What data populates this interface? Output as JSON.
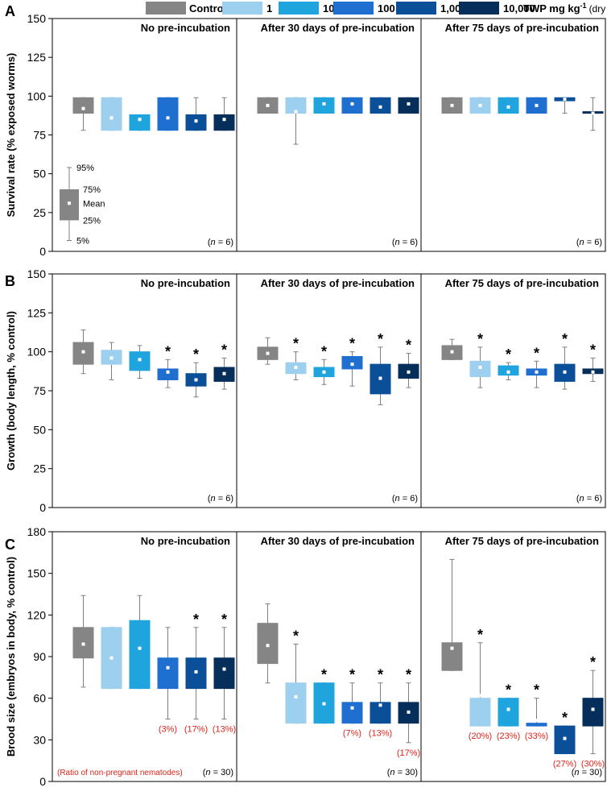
{
  "legend": {
    "items": [
      {
        "label": "Control",
        "color": "#858585"
      },
      {
        "label": "1",
        "color": "#9dd0ee"
      },
      {
        "label": "10",
        "color": "#20a4de"
      },
      {
        "label": "100",
        "color": "#1e6fd0"
      },
      {
        "label": "1,000",
        "color": "#0a4f97"
      },
      {
        "label": "10,000",
        "color": "#062e5b"
      }
    ],
    "unit_bold": "TWP mg kg",
    "unit_sup": "-1",
    "unit_plain": "(dry weight)"
  },
  "box_key": {
    "labels": {
      "p95": "95%",
      "p75": "75%",
      "mean": "Mean",
      "p25": "25%",
      "p5": "5%"
    }
  },
  "chart_data": [
    {
      "type": "box",
      "panel_label": "A",
      "ylabel": "Survival rate (% exposed worms)",
      "ylim": [
        0,
        150
      ],
      "yticks": [
        0,
        25,
        50,
        75,
        100,
        125,
        150
      ],
      "n_label": "6",
      "groups": [
        "No pre-incubation",
        "After 30 days of pre-incubation",
        "After 75 days of pre-incubation"
      ],
      "series": [
        "Control",
        "1",
        "10",
        "100",
        "1,000",
        "10,000"
      ],
      "boxes": [
        [
          {
            "p5": 78,
            "q1": 89,
            "q3": 99,
            "p95": 99,
            "mean": 92
          },
          {
            "p5": 78,
            "q1": 78,
            "q3": 99,
            "p95": 99,
            "mean": 86
          },
          {
            "p5": 78,
            "q1": 78,
            "q3": 88,
            "p95": 88,
            "mean": 85
          },
          {
            "p5": 78,
            "q1": 78,
            "q3": 99,
            "p95": 99,
            "mean": 86
          },
          {
            "p5": 78,
            "q1": 78,
            "q3": 88,
            "p95": 99,
            "mean": 84
          },
          {
            "p5": 78,
            "q1": 78,
            "q3": 88,
            "p95": 99,
            "mean": 85
          }
        ],
        [
          {
            "p5": 89,
            "q1": 89,
            "q3": 99,
            "p95": 99,
            "mean": 94
          },
          {
            "p5": 69,
            "q1": 89,
            "q3": 99,
            "p95": 99,
            "mean": 90
          },
          {
            "p5": 89,
            "q1": 89,
            "q3": 99,
            "p95": 99,
            "mean": 95
          },
          {
            "p5": 89,
            "q1": 89,
            "q3": 99,
            "p95": 99,
            "mean": 95
          },
          {
            "p5": 89,
            "q1": 89,
            "q3": 99,
            "p95": 99,
            "mean": 93
          },
          {
            "p5": 89,
            "q1": 89,
            "q3": 99,
            "p95": 99,
            "mean": 95
          }
        ],
        [
          {
            "p5": 89,
            "q1": 89,
            "q3": 99,
            "p95": 99,
            "mean": 94
          },
          {
            "p5": 89,
            "q1": 89,
            "q3": 99,
            "p95": 99,
            "mean": 94
          },
          {
            "p5": 89,
            "q1": 89,
            "q3": 99,
            "p95": 99,
            "mean": 93
          },
          {
            "p5": 89,
            "q1": 89,
            "q3": 99,
            "p95": 99,
            "mean": 94
          },
          {
            "p5": 89,
            "q1": 97,
            "q3": 99,
            "p95": 99,
            "mean": 98
          },
          {
            "p5": 78,
            "q1": 89,
            "q3": 90,
            "p95": 99,
            "mean": 89
          }
        ]
      ]
    },
    {
      "type": "box",
      "panel_label": "B",
      "ylabel": "Growth (body length, % control)",
      "ylim": [
        0,
        150
      ],
      "yticks": [
        0,
        25,
        50,
        75,
        100,
        125,
        150
      ],
      "n_label": "6",
      "groups": [
        "No pre-incubation",
        "After 30 days of pre-incubation",
        "After 75 days of pre-incubation"
      ],
      "series": [
        "Control",
        "1",
        "10",
        "100",
        "1,000",
        "10,000"
      ],
      "boxes": [
        [
          {
            "p5": 86,
            "q1": 92,
            "q3": 106,
            "p95": 114,
            "mean": 100
          },
          {
            "p5": 82,
            "q1": 92,
            "q3": 101,
            "p95": 106,
            "mean": 96
          },
          {
            "p5": 83,
            "q1": 88,
            "q3": 100,
            "p95": 104,
            "mean": 95
          },
          {
            "p5": 77,
            "q1": 82,
            "q3": 89,
            "p95": 95,
            "mean": 87,
            "sig": true
          },
          {
            "p5": 71,
            "q1": 78,
            "q3": 86,
            "p95": 93,
            "mean": 82,
            "sig": true
          },
          {
            "p5": 76,
            "q1": 81,
            "q3": 90,
            "p95": 96,
            "mean": 86,
            "sig": true
          }
        ],
        [
          {
            "p5": 92,
            "q1": 95,
            "q3": 103,
            "p95": 109,
            "mean": 99
          },
          {
            "p5": 82,
            "q1": 86,
            "q3": 93,
            "p95": 100,
            "mean": 90,
            "sig": true
          },
          {
            "p5": 79,
            "q1": 84,
            "q3": 90,
            "p95": 95,
            "mean": 87,
            "sig": true
          },
          {
            "p5": 78,
            "q1": 89,
            "q3": 97,
            "p95": 100,
            "mean": 92,
            "sig": true
          },
          {
            "p5": 66,
            "q1": 73,
            "q3": 92,
            "p95": 103,
            "mean": 83,
            "sig": true
          },
          {
            "p5": 77,
            "q1": 83,
            "q3": 92,
            "p95": 99,
            "mean": 87,
            "sig": true
          }
        ],
        [
          {
            "p5": 95,
            "q1": 95,
            "q3": 104,
            "p95": 108,
            "mean": 100
          },
          {
            "p5": 77,
            "q1": 84,
            "q3": 94,
            "p95": 103,
            "mean": 90,
            "sig": true
          },
          {
            "p5": 82,
            "q1": 85,
            "q3": 91,
            "p95": 93,
            "mean": 87,
            "sig": true
          },
          {
            "p5": 77,
            "q1": 85,
            "q3": 89,
            "p95": 94,
            "mean": 87,
            "sig": true
          },
          {
            "p5": 76,
            "q1": 81,
            "q3": 92,
            "p95": 103,
            "mean": 87,
            "sig": true
          },
          {
            "p5": 81,
            "q1": 86,
            "q3": 89,
            "p95": 96,
            "mean": 87,
            "sig": true
          }
        ]
      ]
    },
    {
      "type": "box",
      "panel_label": "C",
      "ylabel": "Brood size (embryos in body, % control)",
      "ylim": [
        0,
        180
      ],
      "yticks": [
        0,
        30,
        60,
        90,
        120,
        150,
        180
      ],
      "n_label": "30",
      "note": "(Ratio of non-pregnant nematodes)",
      "groups": [
        "No pre-incubation",
        "After 30 days of pre-incubation",
        "After 75 days of pre-incubation"
      ],
      "series": [
        "Control",
        "1",
        "10",
        "100",
        "1,000",
        "10,000"
      ],
      "boxes": [
        [
          {
            "p5": 68,
            "q1": 89,
            "q3": 111,
            "p95": 134,
            "mean": 99
          },
          {
            "p5": 67,
            "q1": 67,
            "q3": 111,
            "p95": 111,
            "mean": 89
          },
          {
            "p5": 67,
            "q1": 67,
            "q3": 116,
            "p95": 134,
            "mean": 96
          },
          {
            "p5": 45,
            "q1": 67,
            "q3": 89,
            "p95": 111,
            "mean": 82,
            "ratio": "(3%)"
          },
          {
            "p5": 45,
            "q1": 67,
            "q3": 89,
            "p95": 111,
            "mean": 79,
            "sig": true,
            "ratio": "(17%)"
          },
          {
            "p5": 45,
            "q1": 67,
            "q3": 89,
            "p95": 111,
            "mean": 81,
            "sig": true,
            "ratio": "(13%)"
          }
        ],
        [
          {
            "p5": 71,
            "q1": 85,
            "q3": 114,
            "p95": 128,
            "mean": 98
          },
          {
            "p5": 42,
            "q1": 42,
            "q3": 71,
            "p95": 99,
            "mean": 61,
            "sig": true
          },
          {
            "p5": 42,
            "q1": 42,
            "q3": 71,
            "p95": 71,
            "mean": 56,
            "sig": true
          },
          {
            "p5": 42,
            "q1": 42,
            "q3": 57,
            "p95": 71,
            "mean": 53,
            "sig": true,
            "ratio": "(7%)"
          },
          {
            "p5": 42,
            "q1": 42,
            "q3": 57,
            "p95": 71,
            "mean": 55,
            "sig": true,
            "ratio": "(13%)"
          },
          {
            "p5": 28,
            "q1": 42,
            "q3": 57,
            "p95": 71,
            "mean": 50,
            "sig": true,
            "ratio": "(17%)"
          }
        ],
        [
          {
            "p5": 80,
            "q1": 80,
            "q3": 100,
            "p95": 160,
            "mean": 96
          },
          {
            "p5": 40,
            "q1": 40,
            "q3": 60,
            "p95": 100,
            "mean": 62,
            "sig": true,
            "ratio": "(20%)"
          },
          {
            "p5": 40,
            "q1": 40,
            "q3": 60,
            "p95": 60,
            "mean": 52,
            "sig": true,
            "ratio": "(23%)"
          },
          {
            "p5": 40,
            "q1": 40,
            "q3": 42,
            "p95": 60,
            "mean": 44,
            "sig": true,
            "ratio": "(33%)"
          },
          {
            "p5": 20,
            "q1": 20,
            "q3": 40,
            "p95": 40,
            "mean": 31,
            "sig": true,
            "ratio": "(27%)"
          },
          {
            "p5": 20,
            "q1": 40,
            "q3": 60,
            "p95": 80,
            "mean": 52,
            "sig": true,
            "ratio": "(30%)"
          }
        ]
      ]
    }
  ]
}
